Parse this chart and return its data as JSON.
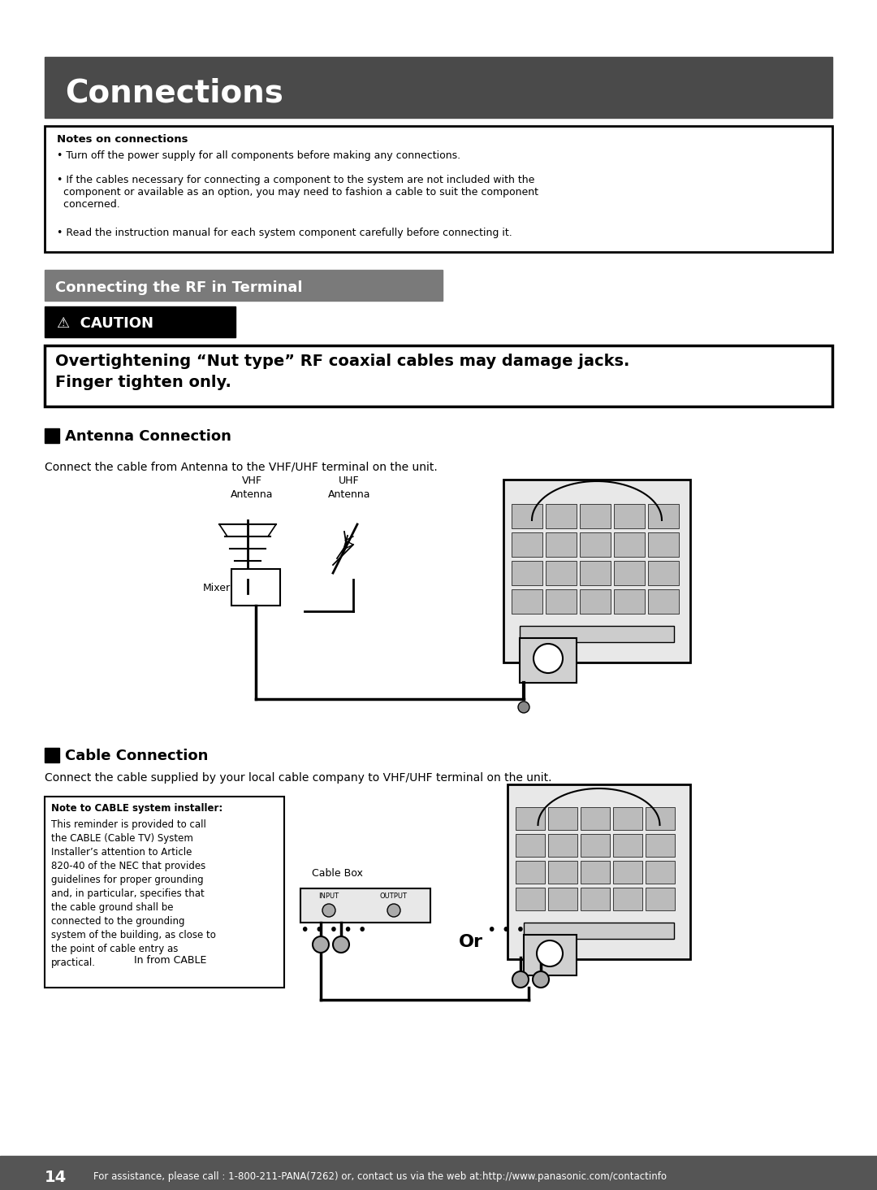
{
  "page_bg": "#ffffff",
  "header_bg": "#4a4a4a",
  "header_text": "Connections",
  "header_text_color": "#ffffff",
  "subheader_bg": "#7a7a7a",
  "subheader_text": "Connecting the RF in Terminal",
  "subheader_text_color": "#ffffff",
  "caution_bg": "#000000",
  "caution_text": "⚠  CAUTION",
  "caution_text_color": "#ffffff",
  "caution_box_text": "Overtightening “Nut type” RF coaxial cables may damage jacks.\nFinger tighten only.",
  "notes_title": "Notes on connections",
  "notes_bullets": [
    "Turn off the power supply for all components before making any connections.",
    "If the cables necessary for connecting a component to the system are not included with the\n  component or available as an option, you may need to fashion a cable to suit the component\n  concerned.",
    "Read the instruction manual for each system component carefully before connecting it."
  ],
  "antenna_section_title": "Antenna Connection",
  "antenna_desc": "Connect the cable from Antenna to the VHF/UHF terminal on the unit.",
  "cable_section_title": "Cable Connection",
  "cable_desc": "Connect the cable supplied by your local cable company to VHF/UHF terminal on the unit.",
  "cable_note_title": "Note to CABLE system installer:",
  "cable_note_body": "This reminder is provided to call\nthe CABLE (Cable TV) System\nInstaller’s attention to Article\n820-40 of the NEC that provides\nguidelines for proper grounding\nand, in particular, specifies that\nthe cable ground shall be\nconnected to the grounding\nsystem of the building, as close to\nthe point of cable entry as\npractical.",
  "or_text": "Or",
  "in_from_cable": "In from CABLE",
  "cable_box_label": "Cable Box",
  "footer_page": "14",
  "footer_text": "For assistance, please call : 1-800-211-PANA(7262) or, contact us via the web at:http://www.panasonic.com/contactinfo",
  "footer_bg": "#555555",
  "footer_text_color": "#ffffff"
}
